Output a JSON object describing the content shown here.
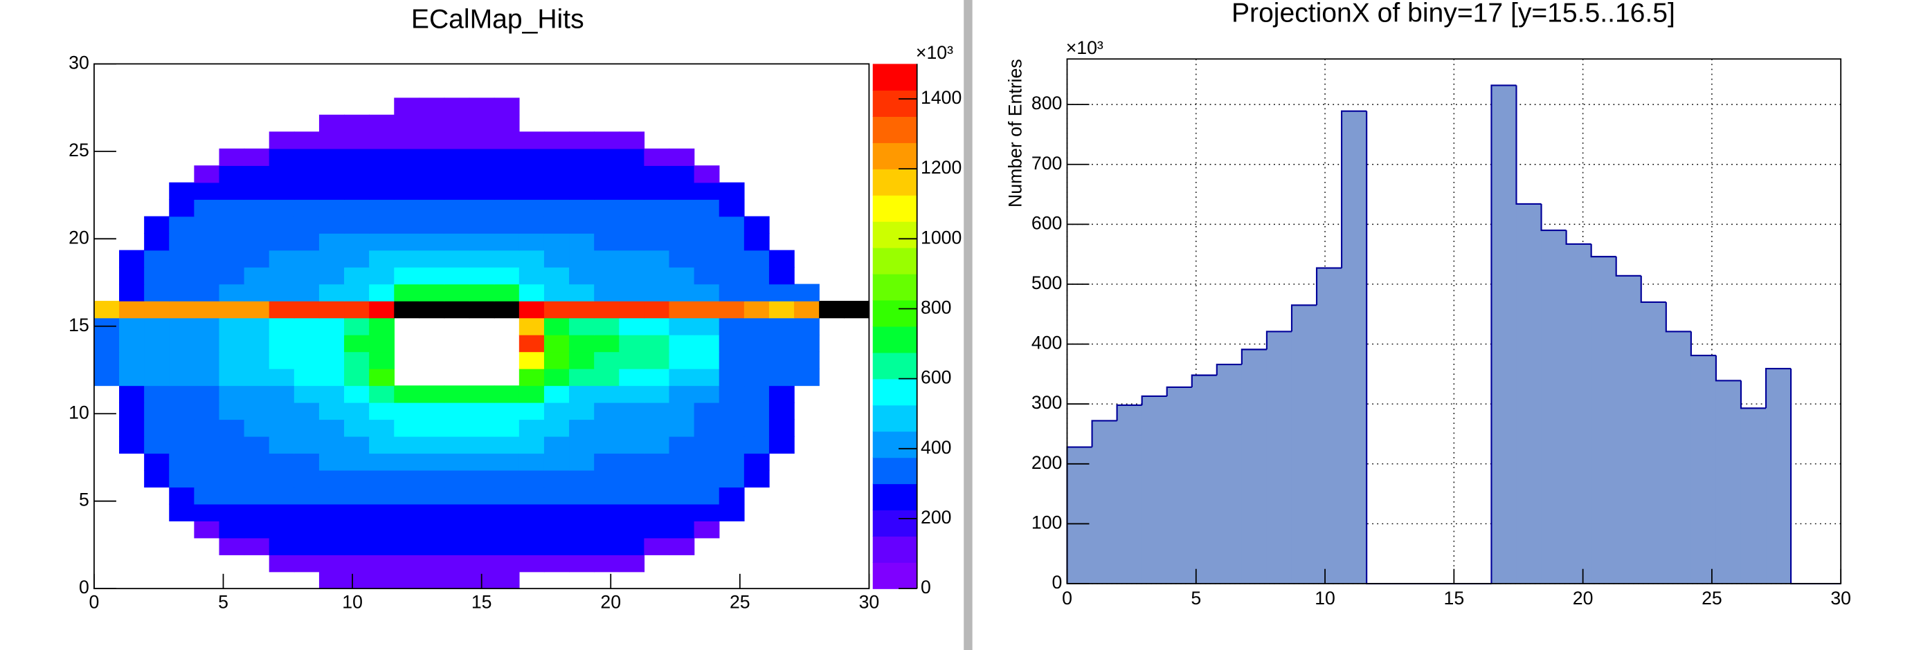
{
  "chart_data": [
    {
      "type": "heatmap",
      "title": "ECalMap_Hits",
      "xlim": [
        0,
        30
      ],
      "ylim": [
        0,
        30
      ],
      "xticks": [
        0,
        5,
        10,
        15,
        20,
        25,
        30
      ],
      "yticks": [
        0,
        5,
        10,
        15,
        20,
        25,
        30
      ],
      "zlim": [
        0,
        1500
      ],
      "zticks": [
        0,
        200,
        400,
        600,
        800,
        1000,
        1200,
        1400
      ],
      "multiplier": "×10³",
      "zero_color": "#000000",
      "palette": [
        "#7f00ff",
        "#6600ff",
        "#3300ff",
        "#0000ff",
        "#0066ff",
        "#0099ff",
        "#00ccff",
        "#00ffff",
        "#00ff99",
        "#00ff33",
        "#33ff00",
        "#66ff00",
        "#99ff00",
        "#ccff00",
        "#ffff00",
        "#ffcc00",
        "#ff9900",
        "#ff6600",
        "#ff3300",
        "#ff0000"
      ],
      "z": [
        [
          null,
          null,
          null,
          null,
          null,
          null,
          null,
          null,
          null,
          80,
          80,
          80,
          80,
          80,
          80,
          80,
          80,
          null,
          null,
          null,
          null,
          null,
          null,
          null,
          null,
          null,
          null,
          null,
          null,
          null,
          null
        ],
        [
          null,
          null,
          null,
          null,
          null,
          null,
          null,
          80,
          80,
          80,
          80,
          80,
          80,
          80,
          80,
          80,
          80,
          80,
          80,
          80,
          80,
          80,
          null,
          null,
          null,
          null,
          null,
          null,
          null,
          null,
          null
        ],
        [
          null,
          null,
          null,
          null,
          null,
          80,
          80,
          240,
          240,
          240,
          240,
          240,
          240,
          240,
          240,
          240,
          240,
          240,
          240,
          240,
          240,
          240,
          80,
          80,
          null,
          null,
          null,
          null,
          null,
          null,
          null
        ],
        [
          null,
          null,
          null,
          null,
          80,
          240,
          240,
          240,
          240,
          240,
          240,
          240,
          240,
          240,
          240,
          240,
          240,
          240,
          240,
          240,
          240,
          240,
          240,
          240,
          80,
          null,
          null,
          null,
          null,
          null,
          null
        ],
        [
          null,
          null,
          null,
          240,
          240,
          240,
          240,
          240,
          240,
          240,
          240,
          240,
          240,
          240,
          240,
          240,
          240,
          240,
          240,
          240,
          240,
          240,
          240,
          240,
          240,
          240,
          null,
          null,
          null,
          null,
          null
        ],
        [
          null,
          null,
          null,
          240,
          320,
          320,
          320,
          320,
          320,
          320,
          320,
          320,
          320,
          320,
          320,
          320,
          320,
          320,
          320,
          320,
          320,
          320,
          320,
          320,
          320,
          240,
          null,
          null,
          null,
          null,
          null
        ],
        [
          null,
          null,
          240,
          320,
          320,
          320,
          320,
          320,
          320,
          320,
          320,
          320,
          320,
          320,
          320,
          320,
          320,
          320,
          320,
          320,
          320,
          320,
          320,
          320,
          320,
          320,
          240,
          null,
          null,
          null,
          null
        ],
        [
          null,
          null,
          240,
          320,
          320,
          320,
          320,
          320,
          320,
          380,
          380,
          380,
          380,
          380,
          380,
          380,
          380,
          380,
          380,
          380,
          320,
          320,
          320,
          320,
          320,
          320,
          240,
          null,
          null,
          null,
          null
        ],
        [
          null,
          240,
          320,
          320,
          320,
          320,
          320,
          380,
          380,
          380,
          380,
          460,
          460,
          460,
          460,
          460,
          460,
          460,
          380,
          380,
          380,
          380,
          380,
          320,
          320,
          320,
          320,
          240,
          null,
          null,
          null
        ],
        [
          null,
          240,
          320,
          320,
          320,
          320,
          380,
          380,
          380,
          380,
          460,
          460,
          540,
          540,
          540,
          540,
          540,
          460,
          460,
          380,
          380,
          380,
          380,
          380,
          320,
          320,
          320,
          240,
          null,
          null,
          null
        ],
        [
          null,
          240,
          320,
          320,
          320,
          380,
          380,
          380,
          380,
          460,
          460,
          540,
          540,
          540,
          540,
          540,
          540,
          540,
          460,
          460,
          380,
          380,
          380,
          380,
          320,
          320,
          320,
          240,
          null,
          null,
          null
        ],
        [
          null,
          240,
          320,
          320,
          320,
          380,
          380,
          380,
          460,
          460,
          540,
          600,
          720,
          720,
          720,
          720,
          720,
          700,
          560,
          460,
          460,
          460,
          460,
          380,
          380,
          320,
          320,
          240,
          null,
          null,
          null
        ],
        [
          320,
          380,
          380,
          380,
          380,
          460,
          460,
          460,
          540,
          540,
          600,
          820,
          null,
          null,
          null,
          null,
          null,
          750,
          700,
          600,
          600,
          560,
          560,
          460,
          460,
          320,
          320,
          320,
          320,
          null,
          null
        ],
        [
          320,
          380,
          380,
          380,
          380,
          460,
          460,
          540,
          540,
          560,
          650,
          720,
          null,
          null,
          null,
          null,
          null,
          1100,
          760,
          720,
          650,
          650,
          600,
          540,
          540,
          320,
          320,
          320,
          320,
          null,
          null
        ],
        [
          320,
          380,
          380,
          380,
          380,
          460,
          460,
          540,
          540,
          580,
          680,
          700,
          null,
          null,
          null,
          null,
          null,
          1400,
          780,
          700,
          700,
          620,
          620,
          540,
          540,
          320,
          320,
          320,
          320,
          null,
          null
        ],
        [
          320,
          380,
          380,
          380,
          380,
          460,
          460,
          540,
          540,
          560,
          620,
          700,
          null,
          null,
          null,
          null,
          null,
          1150,
          720,
          650,
          650,
          580,
          580,
          500,
          500,
          320,
          320,
          320,
          320,
          null,
          null
        ],
        [
          1150,
          1260,
          1260,
          1260,
          1260,
          1260,
          1260,
          1350,
          1350,
          1420,
          1420,
          1480,
          0,
          0,
          0,
          0,
          0,
          1480,
          1420,
          1420,
          1420,
          1420,
          1420,
          1300,
          1300,
          1300,
          1250,
          1150,
          1250,
          0,
          0
        ],
        [
          null,
          240,
          320,
          320,
          320,
          380,
          380,
          380,
          380,
          460,
          460,
          540,
          720,
          720,
          720,
          720,
          720,
          540,
          460,
          460,
          380,
          380,
          380,
          380,
          380,
          320,
          320,
          320,
          320,
          null,
          null
        ],
        [
          null,
          240,
          320,
          320,
          320,
          320,
          380,
          380,
          380,
          380,
          460,
          460,
          540,
          540,
          540,
          540,
          540,
          460,
          460,
          380,
          380,
          380,
          380,
          380,
          320,
          320,
          320,
          240,
          null,
          null,
          null
        ],
        [
          null,
          240,
          320,
          320,
          320,
          320,
          320,
          380,
          380,
          380,
          380,
          460,
          460,
          460,
          460,
          460,
          460,
          460,
          380,
          380,
          380,
          380,
          380,
          320,
          320,
          320,
          320,
          240,
          null,
          null,
          null
        ],
        [
          null,
          null,
          240,
          320,
          320,
          320,
          320,
          320,
          320,
          380,
          380,
          380,
          380,
          380,
          380,
          380,
          380,
          380,
          380,
          380,
          320,
          320,
          320,
          320,
          320,
          320,
          240,
          null,
          null,
          null,
          null
        ],
        [
          null,
          null,
          240,
          320,
          320,
          320,
          320,
          320,
          320,
          320,
          320,
          320,
          320,
          320,
          320,
          320,
          320,
          320,
          320,
          320,
          320,
          320,
          320,
          320,
          320,
          320,
          240,
          null,
          null,
          null,
          null
        ],
        [
          null,
          null,
          null,
          240,
          320,
          320,
          320,
          320,
          320,
          320,
          320,
          320,
          320,
          320,
          320,
          320,
          320,
          320,
          320,
          320,
          320,
          320,
          320,
          320,
          320,
          240,
          null,
          null,
          null,
          null,
          null
        ],
        [
          null,
          null,
          null,
          240,
          240,
          240,
          240,
          240,
          240,
          240,
          240,
          240,
          240,
          240,
          240,
          240,
          240,
          240,
          240,
          240,
          240,
          240,
          240,
          240,
          240,
          240,
          null,
          null,
          null,
          null,
          null
        ],
        [
          null,
          null,
          null,
          null,
          80,
          240,
          240,
          240,
          240,
          240,
          240,
          240,
          240,
          240,
          240,
          240,
          240,
          240,
          240,
          240,
          240,
          240,
          240,
          240,
          80,
          null,
          null,
          null,
          null,
          null,
          null
        ],
        [
          null,
          null,
          null,
          null,
          null,
          80,
          80,
          240,
          240,
          240,
          240,
          240,
          240,
          240,
          240,
          240,
          240,
          240,
          240,
          240,
          240,
          240,
          80,
          80,
          null,
          null,
          null,
          null,
          null,
          null,
          null
        ],
        [
          null,
          null,
          null,
          null,
          null,
          null,
          null,
          80,
          80,
          80,
          80,
          80,
          80,
          80,
          80,
          80,
          80,
          80,
          80,
          80,
          80,
          80,
          null,
          null,
          null,
          null,
          null,
          null,
          null,
          null,
          null
        ],
        [
          null,
          null,
          null,
          null,
          null,
          null,
          null,
          null,
          null,
          80,
          80,
          80,
          80,
          80,
          80,
          80,
          80,
          null,
          null,
          null,
          null,
          null,
          null,
          null,
          null,
          null,
          null,
          null,
          null,
          null,
          null
        ],
        [
          null,
          null,
          null,
          null,
          null,
          null,
          null,
          null,
          null,
          null,
          null,
          null,
          80,
          80,
          80,
          80,
          80,
          null,
          null,
          null,
          null,
          null,
          null,
          null,
          null,
          null,
          null,
          null,
          null,
          null,
          null
        ],
        [
          null,
          null,
          null,
          null,
          null,
          null,
          null,
          null,
          null,
          null,
          null,
          null,
          null,
          null,
          null,
          null,
          null,
          null,
          null,
          null,
          null,
          null,
          null,
          null,
          null,
          null,
          null,
          null,
          null,
          null,
          null
        ],
        [
          null,
          null,
          null,
          null,
          null,
          null,
          null,
          null,
          null,
          null,
          null,
          null,
          null,
          null,
          null,
          null,
          null,
          null,
          null,
          null,
          null,
          null,
          null,
          null,
          null,
          null,
          null,
          null,
          null,
          null,
          null
        ]
      ]
    },
    {
      "type": "histogram",
      "title": "ProjectionX of biny=17 [y=15.5..16.5]",
      "y_label": "Number of Entries",
      "multiplier": "×10³",
      "color": "#7f9bd2",
      "edge_color": "#000099",
      "grid": true,
      "xlim": [
        0,
        30
      ],
      "ylim": [
        0,
        876
      ],
      "xticks": [
        0,
        5,
        10,
        15,
        20,
        25,
        30
      ],
      "yticks": [
        0,
        100,
        200,
        300,
        400,
        500,
        600,
        700,
        800
      ],
      "bins": [
        0,
        0.968,
        1.935,
        2.903,
        3.871,
        4.839,
        5.806,
        6.774,
        7.742,
        8.71,
        9.677,
        10.645,
        11.613,
        12.581,
        13.548,
        14.516,
        15.484,
        16.452,
        17.419,
        18.387,
        19.355,
        20.323,
        21.29,
        22.258,
        23.226,
        24.194,
        25.161,
        26.129,
        27.097,
        28.065,
        29.032,
        30
      ],
      "values": [
        228,
        272,
        298,
        313,
        328,
        348,
        366,
        391,
        421,
        465,
        527,
        789,
        0,
        0,
        0,
        0,
        0,
        832,
        634,
        590,
        567,
        546,
        514,
        470,
        421,
        381,
        339,
        293,
        359,
        0,
        0
      ]
    }
  ]
}
